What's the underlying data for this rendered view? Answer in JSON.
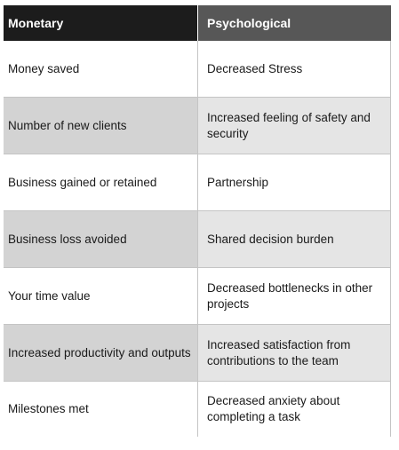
{
  "table": {
    "headers": [
      "Monetary",
      "Psychological"
    ],
    "rows": [
      [
        "Money saved",
        "Decreased Stress"
      ],
      [
        "Number of new clients",
        "Increased feeling of safety and security"
      ],
      [
        "Business gained or retained",
        "Partnership"
      ],
      [
        "Business loss avoided",
        "Shared decision burden"
      ],
      [
        "Your time value",
        "Decreased bottlenecks in other projects"
      ],
      [
        "Increased productivity and outputs",
        "Increased satisfaction from contributions to the team"
      ],
      [
        "Milestones met",
        "Decreased anxiety about completing a task"
      ]
    ]
  }
}
